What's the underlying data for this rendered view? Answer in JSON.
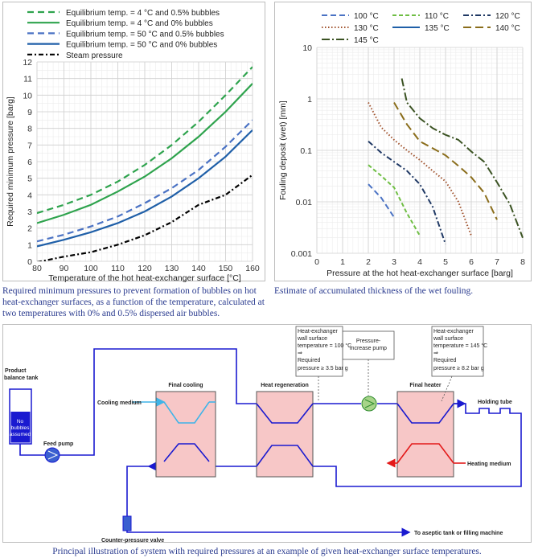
{
  "left_chart": {
    "legend": [
      "Equilibrium temp. = 4 °C and 0.5% bubbles",
      "Equilibrium temp. = 4 °C and 0% bubbles",
      "Equilibrium temp. = 50 °C and 0.5% bubbles",
      "Equilibrium temp. = 50 °C and 0% bubbles",
      "Steam pressure"
    ],
    "xlabel": "Temperature of the hot heat-exchanger surface [°C]",
    "ylabel": "Required minimum pressure [barg]",
    "caption": "Required minimum pressures to prevent formation of bubbles on hot heat-exchanger surfaces, as a function of the temperature, calculated at two temperatures with 0% and 0.5% dispersed air bubbles."
  },
  "right_chart": {
    "legend": [
      "100 °C",
      "110 °C",
      "120 °C",
      "130 °C",
      "135 °C",
      "140 °C",
      "145 °C"
    ],
    "xlabel": "Pressure at the hot heat-exchanger surface [barg]",
    "ylabel": "Fouling deposit (wet) [mm]",
    "caption": "Estimate of accumulated thickness of the wet fouling."
  },
  "chart_data": [
    {
      "type": "line",
      "xlabel": "Temperature of the hot heat-exchanger surface [°C]",
      "ylabel": "Required minimum pressure [barg]",
      "xlim": [
        80,
        160
      ],
      "ylim": [
        0,
        12
      ],
      "xticks": [
        80,
        90,
        100,
        110,
        120,
        130,
        140,
        150,
        160
      ],
      "yticks": [
        0,
        1,
        2,
        3,
        4,
        5,
        6,
        7,
        8,
        9,
        10,
        11,
        12
      ],
      "grid": true,
      "legend_position": "top",
      "series": [
        {
          "name": "Equilibrium temp. = 4 °C and 0.5% bubbles",
          "color": "#2ea34d",
          "dash": "8,5",
          "x": [
            80,
            90,
            100,
            110,
            120,
            130,
            140,
            150,
            160
          ],
          "y": [
            2.9,
            3.4,
            4.0,
            4.8,
            5.8,
            7.0,
            8.4,
            10.0,
            11.7
          ]
        },
        {
          "name": "Equilibrium temp. = 4 °C and 0% bubbles",
          "color": "#2ea34d",
          "dash": "",
          "x": [
            80,
            90,
            100,
            110,
            120,
            130,
            140,
            150,
            160
          ],
          "y": [
            2.3,
            2.8,
            3.4,
            4.2,
            5.1,
            6.2,
            7.5,
            9.0,
            10.7
          ]
        },
        {
          "name": "Equilibrium temp. = 50 °C and 0.5% bubbles",
          "color": "#4a72c4",
          "dash": "8,5",
          "x": [
            80,
            90,
            100,
            110,
            120,
            130,
            140,
            150,
            160
          ],
          "y": [
            1.2,
            1.6,
            2.1,
            2.7,
            3.5,
            4.4,
            5.5,
            6.9,
            8.5
          ]
        },
        {
          "name": "Equilibrium temp. = 50 °C and 0% bubbles",
          "color": "#1f5fa8",
          "dash": "",
          "x": [
            80,
            90,
            100,
            110,
            120,
            130,
            140,
            150,
            160
          ],
          "y": [
            0.9,
            1.3,
            1.75,
            2.3,
            3.0,
            3.9,
            5.0,
            6.3,
            7.9
          ]
        },
        {
          "name": "Steam pressure",
          "color": "#000000",
          "dash": "6,3,2,3",
          "x": [
            80,
            90,
            100,
            110,
            120,
            130,
            140,
            150,
            160
          ],
          "y": [
            -0.05,
            0.28,
            0.55,
            1.0,
            1.57,
            2.36,
            3.4,
            4.0,
            5.2
          ]
        }
      ]
    },
    {
      "type": "line",
      "xlabel": "Pressure at the hot heat-exchanger surface [barg]",
      "ylabel": "Fouling deposit (wet) [mm]",
      "xlim": [
        0,
        8
      ],
      "ylim": [
        0.001,
        10
      ],
      "yscale": "log",
      "xticks": [
        0,
        1,
        2,
        3,
        4,
        5,
        6,
        7,
        8
      ],
      "yticks": [
        0.001,
        0.01,
        0.1,
        1,
        10
      ],
      "grid": true,
      "legend_position": "top",
      "series": [
        {
          "name": "100 °C",
          "color": "#4a72c4",
          "dash": "7,4",
          "x": [
            2,
            2.5,
            3
          ],
          "y": [
            0.022,
            0.012,
            0.005
          ]
        },
        {
          "name": "110 °C",
          "color": "#6fbe44",
          "dash": "5,3",
          "x": [
            2,
            2.5,
            3,
            3.5,
            4
          ],
          "y": [
            0.052,
            0.032,
            0.019,
            0.006,
            0.0022
          ]
        },
        {
          "name": "120 °C",
          "color": "#1f3864",
          "dash": "7,3,2,3",
          "x": [
            2,
            2.5,
            3,
            3.5,
            4,
            4.5,
            5
          ],
          "y": [
            0.15,
            0.09,
            0.06,
            0.04,
            0.022,
            0.008,
            0.0015
          ]
        },
        {
          "name": "130 °C",
          "color": "#a0522d",
          "dash": "1.5,2.5",
          "x": [
            2,
            2.5,
            3,
            3.5,
            4,
            4.5,
            5,
            5.5,
            6
          ],
          "y": [
            0.85,
            0.28,
            0.16,
            0.1,
            0.065,
            0.04,
            0.025,
            0.01,
            0.0022
          ]
        },
        {
          "name": "135 °C",
          "color": "#1f5fa8",
          "dash": "",
          "x": [],
          "y": []
        },
        {
          "name": "140 °C",
          "color": "#8a6d1b",
          "dash": "10,5",
          "x": [
            3,
            3.5,
            4,
            4.5,
            5,
            5.5,
            6,
            6.5,
            7
          ],
          "y": [
            0.85,
            0.32,
            0.15,
            0.11,
            0.08,
            0.05,
            0.03,
            0.015,
            0.0045
          ]
        },
        {
          "name": "145 °C",
          "color": "#3b5323",
          "dash": "10,3,2,3",
          "x": [
            3.3,
            3.5,
            4,
            4.5,
            5,
            5.5,
            6,
            6.5,
            7,
            7.5,
            8
          ],
          "y": [
            2.5,
            0.85,
            0.42,
            0.27,
            0.2,
            0.16,
            0.095,
            0.06,
            0.024,
            0.009,
            0.002
          ]
        }
      ]
    }
  ],
  "diagram": {
    "product_tank": "Product balance tank",
    "tank_inner": "No bubbles assumed",
    "feed_pump": "Feed pump",
    "final_cooling": "Final cooling",
    "cooling_medium": "Cooling medium",
    "heat_regeneration": "Heat regeneration",
    "pressure_pump": "Pressure-increase pump",
    "final_heater": "Final heater",
    "holding_tube": "Holding tube",
    "heating_medium": "Heating medium",
    "counter_valve": "Counter-pressure valve",
    "aseptic": "To aseptic tank or filling machine",
    "callout1_lines": [
      "Heat-exchanger",
      "wall surface",
      "temperature = 100 °C",
      "⇒",
      "Required",
      "pressure ≥ 3.5 bar g"
    ],
    "callout2_lines": [
      "Heat-exchanger",
      "wall surface",
      "temperature = 145 °C",
      "⇒",
      "Required",
      "pressure ≥ 8.2 bar g"
    ],
    "caption": "Principal illustration of system with required pressures at an example of given heat-exchanger surface temperatures."
  },
  "colors": {
    "green": "#2ea34d",
    "blue": "#1f5fa8",
    "pipe": "#1a1ad0",
    "hx_fill": "#f7c7c7",
    "hot": "#e31a1a",
    "cold": "#3fb4e8"
  }
}
